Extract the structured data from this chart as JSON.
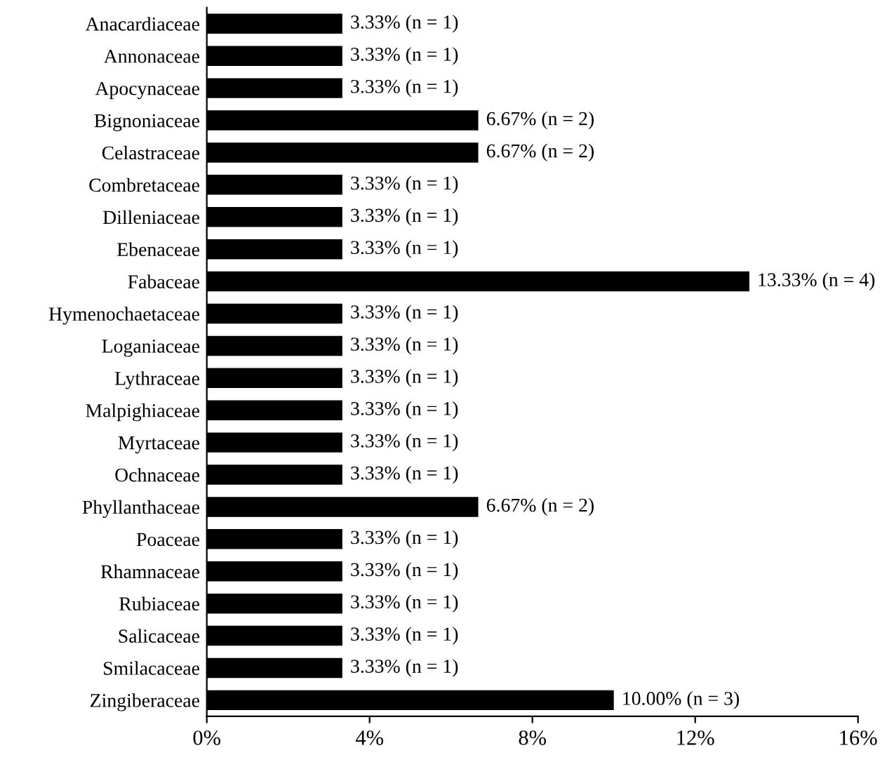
{
  "chart_data": {
    "type": "bar",
    "orientation": "horizontal",
    "categories": [
      "Anacardiaceae",
      "Annonaceae",
      "Apocynaceae",
      "Bignoniaceae",
      "Celastraceae",
      "Combretaceae",
      "Dilleniaceae",
      "Ebenaceae",
      "Fabaceae",
      "Hymenochaetaceae",
      "Loganiaceae",
      "Lythraceae",
      "Malpighiaceae",
      "Myrtaceae",
      "Ochnaceae",
      "Phyllanthaceae",
      "Poaceae",
      "Rhamnaceae",
      "Rubiaceae",
      "Salicaceae",
      "Smilacaceae",
      "Zingiberaceae"
    ],
    "values": [
      3.33,
      3.33,
      3.33,
      6.67,
      6.67,
      3.33,
      3.33,
      3.33,
      13.33,
      3.33,
      3.33,
      3.33,
      3.33,
      3.33,
      3.33,
      6.67,
      3.33,
      3.33,
      3.33,
      3.33,
      3.33,
      10.0
    ],
    "value_labels": [
      "3.33% (n = 1)",
      "3.33% (n = 1)",
      "3.33% (n = 1)",
      "6.67% (n = 2)",
      "6.67% (n = 2)",
      "3.33% (n = 1)",
      "3.33% (n = 1)",
      "3.33% (n = 1)",
      "13.33% (n = 4)",
      "3.33% (n = 1)",
      "3.33% (n = 1)",
      "3.33% (n = 1)",
      "3.33% (n = 1)",
      "3.33% (n = 1)",
      "3.33% (n = 1)",
      "6.67% (n = 2)",
      "3.33% (n = 1)",
      "3.33% (n = 1)",
      "3.33% (n = 1)",
      "3.33% (n = 1)",
      "3.33% (n = 1)",
      "10.00% (n = 3)"
    ],
    "color": "#000000",
    "xlim": [
      0,
      16
    ],
    "xticks": [
      {
        "value": 0,
        "label": "0%"
      },
      {
        "value": 4,
        "label": "4%"
      },
      {
        "value": 8,
        "label": "8%"
      },
      {
        "value": 12,
        "label": "12%"
      },
      {
        "value": 16,
        "label": "16%"
      }
    ],
    "grid": false,
    "legend": false
  }
}
